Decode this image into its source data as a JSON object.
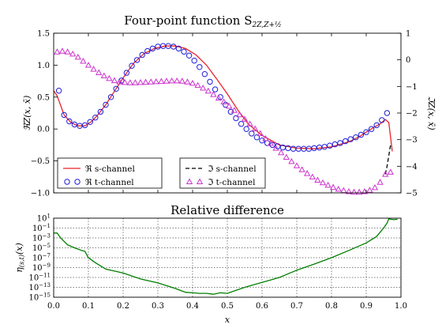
{
  "chart_data": [
    {
      "type": "line",
      "title": "Four-point function S",
      "title_subscript": "2Z,Z+½",
      "xlim": [
        0,
        1
      ],
      "ylim_left": [
        -1.0,
        1.5
      ],
      "ylim_right": [
        -5,
        1
      ],
      "ylabel_left": "ℜZ(x, x̄)",
      "ylabel_right": "ℑZ(x, x̄)",
      "yticks_left": [
        "−1.0",
        "−0.5",
        "0.0",
        "0.5",
        "1.0",
        "1.5"
      ],
      "yticks_right": [
        "−5",
        "−4",
        "−3",
        "−2",
        "−1",
        "0",
        "1"
      ],
      "grid": false,
      "legends": [
        {
          "placement": "lower-left",
          "entries": [
            {
              "label": "ℜ s-channel",
              "color": "#e8232b",
              "marker": "line"
            },
            {
              "label": "ℜ t-channel",
              "color": "#1f1fdb",
              "marker": "circle"
            }
          ]
        },
        {
          "placement": "lower-center",
          "entries": [
            {
              "label": "ℑ s-channel",
              "color": "#000000",
              "marker": "dashed"
            },
            {
              "label": "ℑ t-channel",
              "color": "#cc33cc",
              "marker": "triangle"
            }
          ]
        }
      ],
      "series": [
        {
          "name": "ℜ s-channel",
          "axis": "left",
          "color": "#e8232b",
          "style": "solid",
          "x": [
            0.0,
            0.01,
            0.03,
            0.05,
            0.07,
            0.09,
            0.11,
            0.13,
            0.15,
            0.17,
            0.2,
            0.23,
            0.26,
            0.29,
            0.32,
            0.35,
            0.38,
            0.41,
            0.44,
            0.47,
            0.5,
            0.53,
            0.56,
            0.6,
            0.65,
            0.7,
            0.75,
            0.8,
            0.85,
            0.88,
            0.9,
            0.92,
            0.94,
            0.955,
            0.965,
            0.975
          ],
          "y": [
            0.6,
            0.52,
            0.22,
            0.1,
            0.05,
            0.05,
            0.12,
            0.24,
            0.38,
            0.55,
            0.8,
            1.03,
            1.18,
            1.26,
            1.3,
            1.3,
            1.26,
            1.16,
            1.0,
            0.78,
            0.55,
            0.3,
            0.08,
            -0.1,
            -0.25,
            -0.3,
            -0.31,
            -0.28,
            -0.2,
            -0.12,
            -0.05,
            0.02,
            0.08,
            0.15,
            0.1,
            -0.35
          ]
        },
        {
          "name": "ℜ t-channel",
          "axis": "left",
          "color": "#1f1fdb",
          "style": "circle",
          "x": [
            0.015,
            0.03,
            0.045,
            0.06,
            0.075,
            0.09,
            0.105,
            0.12,
            0.135,
            0.15,
            0.165,
            0.18,
            0.195,
            0.21,
            0.225,
            0.24,
            0.255,
            0.27,
            0.285,
            0.3,
            0.315,
            0.33,
            0.345,
            0.36,
            0.375,
            0.39,
            0.405,
            0.42,
            0.435,
            0.45,
            0.465,
            0.48,
            0.495,
            0.51,
            0.525,
            0.54,
            0.555,
            0.57,
            0.585,
            0.6,
            0.615,
            0.63,
            0.645,
            0.66,
            0.675,
            0.69,
            0.705,
            0.72,
            0.735,
            0.75,
            0.765,
            0.78,
            0.795,
            0.81,
            0.825,
            0.84,
            0.855,
            0.87,
            0.885,
            0.9,
            0.915,
            0.93,
            0.945,
            0.96
          ],
          "y": [
            0.6,
            0.22,
            0.12,
            0.07,
            0.05,
            0.06,
            0.11,
            0.18,
            0.27,
            0.38,
            0.5,
            0.63,
            0.76,
            0.88,
            0.99,
            1.08,
            1.16,
            1.22,
            1.26,
            1.29,
            1.3,
            1.3,
            1.29,
            1.26,
            1.21,
            1.15,
            1.07,
            0.97,
            0.86,
            0.74,
            0.62,
            0.5,
            0.38,
            0.27,
            0.17,
            0.08,
            0.0,
            -0.07,
            -0.13,
            -0.18,
            -0.22,
            -0.25,
            -0.27,
            -0.29,
            -0.3,
            -0.31,
            -0.31,
            -0.31,
            -0.31,
            -0.3,
            -0.29,
            -0.28,
            -0.26,
            -0.24,
            -0.22,
            -0.19,
            -0.16,
            -0.13,
            -0.09,
            -0.05,
            0.0,
            0.06,
            0.14,
            0.25
          ]
        },
        {
          "name": "ℑ s-channel",
          "axis": "right",
          "color": "#000000",
          "style": "dashed",
          "x": [
            0.955,
            0.96,
            0.965,
            0.97
          ],
          "y": [
            -4.3,
            -4.0,
            -3.6,
            -3.2
          ]
        },
        {
          "name": "ℑ t-channel",
          "axis": "right",
          "color": "#cc33cc",
          "style": "triangle",
          "x": [
            0.01,
            0.025,
            0.04,
            0.055,
            0.07,
            0.085,
            0.1,
            0.115,
            0.13,
            0.145,
            0.16,
            0.175,
            0.19,
            0.205,
            0.22,
            0.235,
            0.25,
            0.265,
            0.28,
            0.295,
            0.31,
            0.325,
            0.34,
            0.355,
            0.37,
            0.385,
            0.4,
            0.415,
            0.43,
            0.445,
            0.46,
            0.475,
            0.49,
            0.505,
            0.52,
            0.535,
            0.55,
            0.565,
            0.58,
            0.595,
            0.61,
            0.625,
            0.64,
            0.655,
            0.67,
            0.685,
            0.7,
            0.715,
            0.73,
            0.745,
            0.76,
            0.775,
            0.79,
            0.805,
            0.82,
            0.835,
            0.85,
            0.865,
            0.88,
            0.895,
            0.91,
            0.925,
            0.94,
            0.955,
            0.97
          ],
          "y": [
            0.3,
            0.33,
            0.3,
            0.22,
            0.1,
            -0.05,
            -0.2,
            -0.35,
            -0.48,
            -0.6,
            -0.7,
            -0.78,
            -0.83,
            -0.85,
            -0.86,
            -0.86,
            -0.85,
            -0.84,
            -0.83,
            -0.82,
            -0.81,
            -0.8,
            -0.79,
            -0.79,
            -0.8,
            -0.83,
            -0.88,
            -0.96,
            -1.06,
            -1.17,
            -1.3,
            -1.44,
            -1.58,
            -1.74,
            -1.9,
            -2.06,
            -2.23,
            -2.41,
            -2.59,
            -2.77,
            -2.96,
            -3.14,
            -3.32,
            -3.49,
            -3.66,
            -3.82,
            -3.98,
            -4.13,
            -4.27,
            -4.4,
            -4.52,
            -4.62,
            -4.71,
            -4.79,
            -4.86,
            -4.91,
            -4.95,
            -4.97,
            -4.97,
            -4.95,
            -4.9,
            -4.8,
            -4.6,
            -4.3,
            -4.22
          ]
        }
      ]
    },
    {
      "type": "line",
      "title": "Relative difference",
      "xlabel": "x",
      "ylabel": "η(s,t)(x)",
      "ylabel_base": "η",
      "ylabel_sub": "(s,t)",
      "ylabel_arg": "(x)",
      "xlim": [
        0,
        1
      ],
      "ylim_log10": [
        -15,
        1
      ],
      "yscale": "log",
      "xticks": [
        "0.0",
        "0.1",
        "0.2",
        "0.3",
        "0.4",
        "0.5",
        "0.6",
        "0.7",
        "0.8",
        "0.9",
        "1.0"
      ],
      "ytick_exponents": [
        "1",
        "−1",
        "−3",
        "−5",
        "−7",
        "−9",
        "−11",
        "−13",
        "−15"
      ],
      "ytick_base": "10",
      "grid": true,
      "series": [
        {
          "name": "η",
          "color": "#007f00",
          "x": [
            0.0,
            0.01,
            0.02,
            0.04,
            0.06,
            0.08,
            0.09,
            0.1,
            0.12,
            0.15,
            0.2,
            0.25,
            0.3,
            0.35,
            0.38,
            0.4,
            0.42,
            0.44,
            0.46,
            0.48,
            0.5,
            0.55,
            0.6,
            0.65,
            0.7,
            0.75,
            0.8,
            0.85,
            0.9,
            0.93,
            0.95,
            0.96,
            0.965,
            0.97,
            0.98,
            0.99
          ],
          "y": [
            0.01,
            0.01,
            0.001,
            4e-05,
            1e-05,
            3e-06,
            2e-06,
            1e-07,
            1e-08,
            5e-10,
            8e-11,
            5e-12,
            8e-13,
            6e-14,
            1e-14,
            8e-15,
            6e-15,
            6e-15,
            4e-15,
            8e-15,
            6e-15,
            1e-13,
            1e-12,
            1e-11,
            3e-10,
            5e-09,
            1e-07,
            3e-06,
            0.0001,
            0.002,
            0.1,
            1,
            8,
            6,
            5,
            6
          ]
        }
      ]
    }
  ]
}
